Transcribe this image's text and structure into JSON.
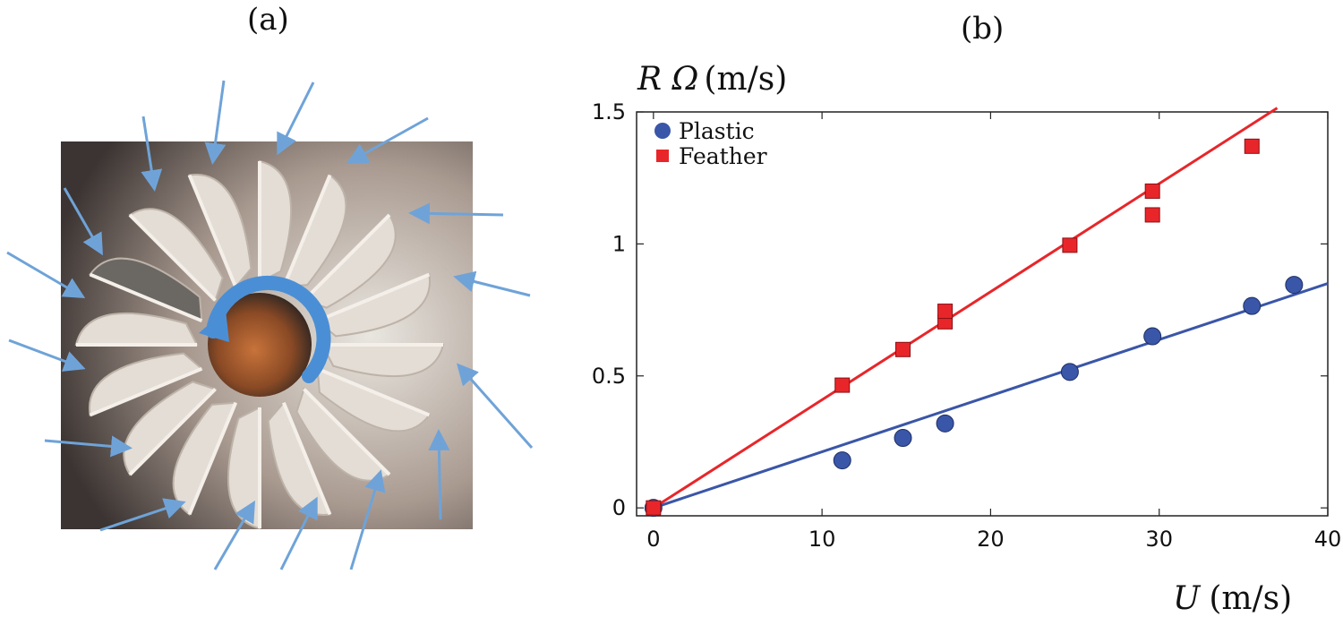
{
  "panels": {
    "a_label": "(a)",
    "b_label": "(b)"
  },
  "photo": {
    "description_icon": "shuttlecock-rotation-photo",
    "arrow_color": "#6fa3d8",
    "rotation_arrow_color": "#4a8fd6"
  },
  "chart_data": {
    "type": "scatter",
    "xlabel_var": "U",
    "xlabel_unit": "(m/s)",
    "ylabel_var": "R Ω",
    "ylabel_unit": "(m/s)",
    "xlim": [
      -1,
      40
    ],
    "ylim": [
      -0.03,
      1.5
    ],
    "xticks": [
      0,
      10,
      20,
      30,
      40
    ],
    "yticks": [
      0,
      0.5,
      1,
      1.5
    ],
    "ytick_labels": [
      "0",
      "0.5",
      "1",
      "1.5"
    ],
    "legend_position": "top-left",
    "series": [
      {
        "name": "Plastic",
        "marker": "circle",
        "color": "#3a56a8",
        "points": [
          [
            0,
            0
          ],
          [
            11.2,
            0.18
          ],
          [
            14.8,
            0.265
          ],
          [
            17.3,
            0.32
          ],
          [
            24.7,
            0.515
          ],
          [
            29.6,
            0.65
          ],
          [
            35.5,
            0.765
          ],
          [
            38,
            0.845
          ]
        ],
        "fit": {
          "x": [
            0,
            40
          ],
          "y": [
            0,
            0.85
          ]
        }
      },
      {
        "name": "Feather",
        "marker": "square",
        "color": "#e8262a",
        "points": [
          [
            0,
            0
          ],
          [
            11.2,
            0.465
          ],
          [
            14.8,
            0.6
          ],
          [
            17.3,
            0.705
          ],
          [
            17.3,
            0.745
          ],
          [
            24.7,
            0.995
          ],
          [
            29.6,
            1.2
          ],
          [
            29.6,
            1.11
          ],
          [
            35.5,
            1.37
          ]
        ],
        "fit": {
          "x": [
            0,
            37
          ],
          "y": [
            0,
            1.515
          ]
        }
      }
    ]
  }
}
